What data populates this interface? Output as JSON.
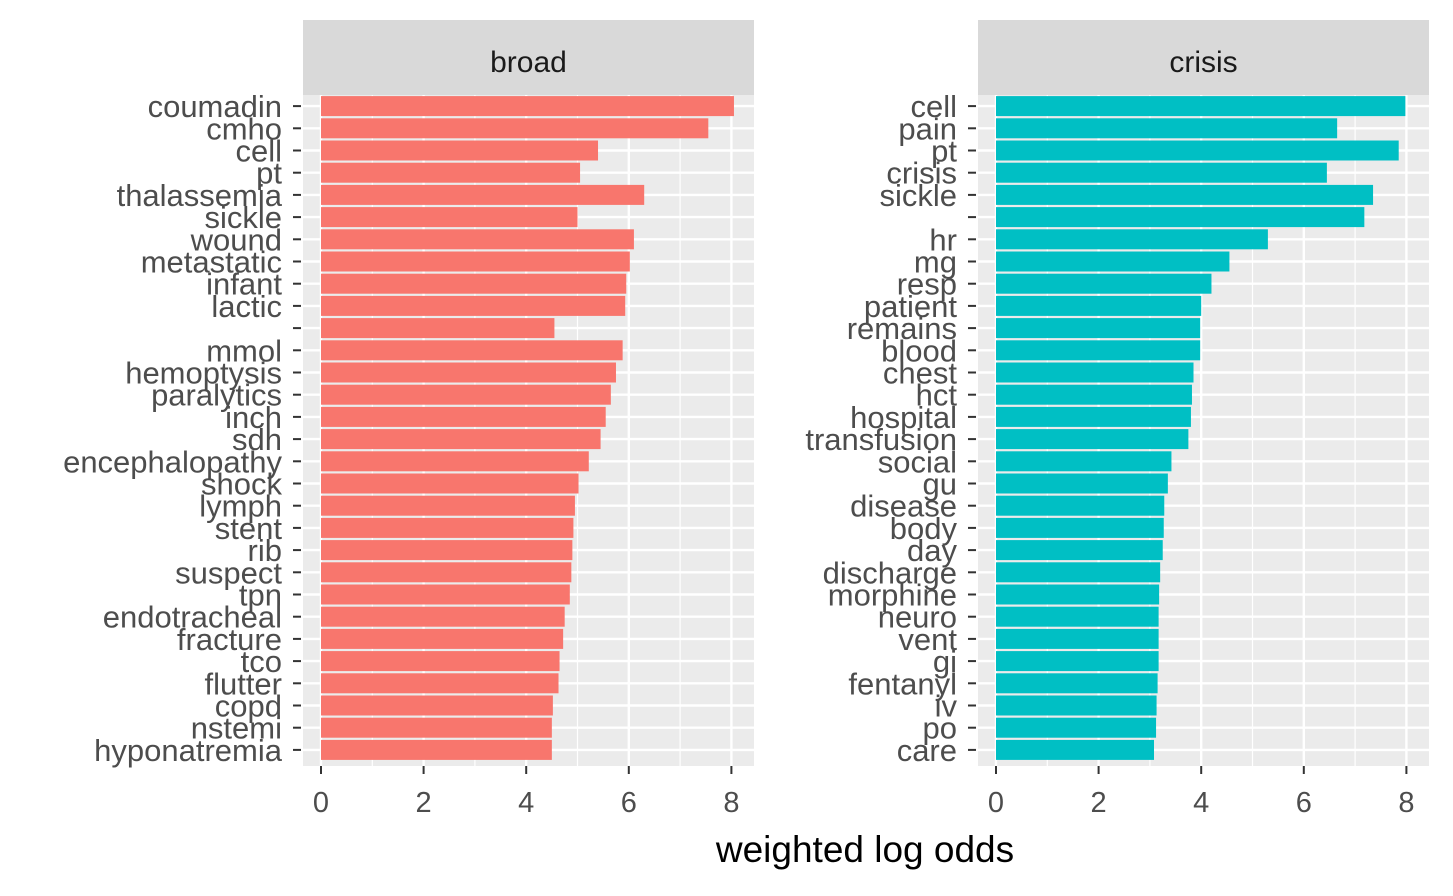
{
  "chart_data": {
    "type": "bar",
    "orientation": "horizontal",
    "xlabel": "weighted log odds",
    "xlim": [
      0,
      8.4
    ],
    "x_ticks": [
      "0",
      "2",
      "4",
      "6",
      "8"
    ],
    "grid": true,
    "legend": "none",
    "panels": [
      {
        "title": "broad",
        "color": "#F8766D",
        "categories": [
          "coumadin",
          "cmho",
          "cell",
          "pt",
          "thalassemia",
          "sickle",
          "wound",
          "metastatic",
          "infant",
          "lactic",
          "",
          "mmol",
          "hemoptysis",
          "paralytics",
          "inch",
          "sdh",
          "encephalopathy",
          "shock",
          "lymph",
          "stent",
          "rib",
          "suspect",
          "tpn",
          "endotracheal",
          "fracture",
          "tco",
          "flutter",
          "copd",
          "nstemi",
          "hyponatremia"
        ],
        "values": [
          8.05,
          7.55,
          5.4,
          5.05,
          6.3,
          5.0,
          6.1,
          6.02,
          5.95,
          5.93,
          4.55,
          5.88,
          5.75,
          5.65,
          5.55,
          5.45,
          5.22,
          5.02,
          4.95,
          4.92,
          4.9,
          4.88,
          4.85,
          4.75,
          4.72,
          4.65,
          4.63,
          4.52,
          4.5,
          4.5
        ]
      },
      {
        "title": "crisis",
        "color": "#00BFC4",
        "categories": [
          "cell",
          "pain",
          "pt",
          "crisis",
          "sickle",
          "",
          "hr",
          "mg",
          "resp",
          "patient",
          "remains",
          "blood",
          "chest",
          "hct",
          "hospital",
          "transfusion",
          "social",
          "gu",
          "disease",
          "body",
          "day",
          "discharge",
          "morphine",
          "neuro",
          "vent",
          "gi",
          "fentanyl",
          "iv",
          "po",
          "care"
        ],
        "values": [
          7.98,
          6.65,
          7.85,
          6.45,
          7.35,
          7.18,
          5.3,
          4.55,
          4.2,
          4.0,
          3.98,
          3.98,
          3.85,
          3.82,
          3.8,
          3.75,
          3.42,
          3.35,
          3.28,
          3.27,
          3.25,
          3.2,
          3.18,
          3.17,
          3.17,
          3.17,
          3.15,
          3.13,
          3.12,
          3.08
        ]
      }
    ]
  }
}
